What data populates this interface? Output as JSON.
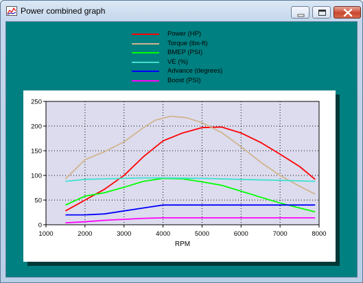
{
  "window": {
    "title": "Power combined graph"
  },
  "colors": {
    "client_bg": "#008080",
    "plot_bg": "#dcdcee",
    "panel_bg": "#ffffff"
  },
  "legend": [
    {
      "label": "Power (HP)",
      "color": "#ff0000"
    },
    {
      "label": "Torque (lbs-ft)",
      "color": "#d2b48c"
    },
    {
      "label": "BMEP (PSI)",
      "color": "#00ff00"
    },
    {
      "label": "VE (%)",
      "color": "#40e0d0"
    },
    {
      "label": "Advance (degrees)",
      "color": "#0000ff"
    },
    {
      "label": "Boost (PSI)",
      "color": "#ff00ff"
    }
  ],
  "chart_data": {
    "type": "line",
    "xlabel": "RPM",
    "ylabel": "",
    "xlim": [
      1000,
      8000
    ],
    "ylim": [
      0,
      250
    ],
    "xticks": [
      1000,
      2000,
      3000,
      4000,
      5000,
      6000,
      7000,
      8000
    ],
    "yticks": [
      0,
      50,
      100,
      150,
      200,
      250
    ],
    "grid": true,
    "series": [
      {
        "name": "Power (HP)",
        "color": "#ff0000",
        "points": [
          [
            1500,
            28
          ],
          [
            2000,
            50
          ],
          [
            2500,
            72
          ],
          [
            3000,
            100
          ],
          [
            3500,
            138
          ],
          [
            4000,
            170
          ],
          [
            4500,
            186
          ],
          [
            5000,
            197
          ],
          [
            5500,
            198
          ],
          [
            6000,
            186
          ],
          [
            6500,
            167
          ],
          [
            7000,
            143
          ],
          [
            7500,
            118
          ],
          [
            7900,
            92
          ]
        ]
      },
      {
        "name": "Torque (lbs-ft)",
        "color": "#d2b48c",
        "points": [
          [
            1500,
            93
          ],
          [
            2000,
            132
          ],
          [
            2500,
            148
          ],
          [
            3000,
            168
          ],
          [
            3500,
            197
          ],
          [
            3800,
            212
          ],
          [
            4200,
            220
          ],
          [
            4600,
            217
          ],
          [
            5000,
            207
          ],
          [
            5500,
            187
          ],
          [
            6000,
            158
          ],
          [
            6500,
            127
          ],
          [
            7000,
            100
          ],
          [
            7500,
            78
          ],
          [
            7900,
            62
          ]
        ]
      },
      {
        "name": "BMEP (PSI)",
        "color": "#00ff00",
        "points": [
          [
            1500,
            40
          ],
          [
            2000,
            58
          ],
          [
            2500,
            65
          ],
          [
            3000,
            76
          ],
          [
            3500,
            88
          ],
          [
            4000,
            94
          ],
          [
            4500,
            93
          ],
          [
            5000,
            87
          ],
          [
            5500,
            80
          ],
          [
            6000,
            68
          ],
          [
            6500,
            56
          ],
          [
            7000,
            44
          ],
          [
            7500,
            34
          ],
          [
            7900,
            26
          ]
        ]
      },
      {
        "name": "VE (%)",
        "color": "#40e0d0",
        "points": [
          [
            1500,
            88
          ],
          [
            2000,
            92
          ],
          [
            2500,
            93
          ],
          [
            3000,
            94
          ],
          [
            3500,
            95
          ],
          [
            4000,
            95
          ],
          [
            5000,
            94
          ],
          [
            6000,
            92
          ],
          [
            7000,
            90
          ],
          [
            7900,
            88
          ]
        ]
      },
      {
        "name": "Advance (degrees)",
        "color": "#0000ff",
        "points": [
          [
            1500,
            20
          ],
          [
            2000,
            20
          ],
          [
            2500,
            22
          ],
          [
            3000,
            28
          ],
          [
            3500,
            34
          ],
          [
            4000,
            40
          ],
          [
            5000,
            40
          ],
          [
            6000,
            40
          ],
          [
            7000,
            40
          ],
          [
            7900,
            40
          ]
        ]
      },
      {
        "name": "Boost (PSI)",
        "color": "#ff00ff",
        "points": [
          [
            1500,
            4
          ],
          [
            2000,
            6
          ],
          [
            2500,
            9
          ],
          [
            3000,
            11
          ],
          [
            3500,
            13
          ],
          [
            4000,
            14
          ],
          [
            5000,
            14
          ],
          [
            6000,
            14
          ],
          [
            7000,
            14
          ],
          [
            7900,
            14
          ]
        ]
      }
    ]
  }
}
